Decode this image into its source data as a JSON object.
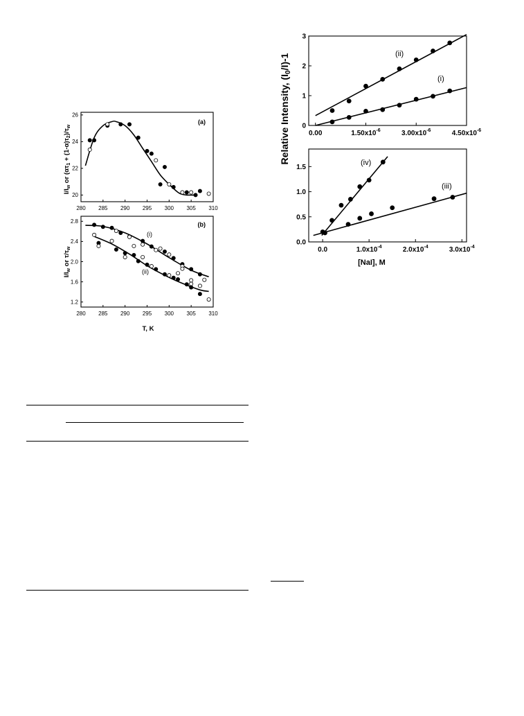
{
  "chart_data": [
    {
      "type": "scatter",
      "panel_label": "(a)",
      "xlim": [
        280,
        310
      ],
      "ylim": [
        19.5,
        26.2
      ],
      "xticks": [
        280,
        285,
        290,
        295,
        300,
        305,
        310
      ],
      "yticks": [
        20,
        22,
        24,
        26
      ],
      "xlabel": "",
      "ylabel": "I/I_w or (ατ1 + (1-α)τ2)/τw",
      "series": [
        {
          "marker": "filled",
          "x": [
            282,
            283,
            286,
            289,
            291,
            293,
            295,
            296,
            298,
            299,
            301,
            304,
            306,
            307
          ],
          "y": [
            24.1,
            24.1,
            25.2,
            25.3,
            25.3,
            24.3,
            23.3,
            23.1,
            20.8,
            22.1,
            20.6,
            20.2,
            20.0,
            20.3
          ]
        },
        {
          "marker": "open",
          "x": [
            282,
            286,
            297,
            300,
            303,
            305,
            309
          ],
          "y": [
            23.4,
            25.3,
            22.6,
            20.8,
            20.2,
            20.2,
            20.1
          ]
        }
      ],
      "fit": {
        "x": [
          281,
          283,
          285,
          287,
          288,
          290,
          292,
          294,
          296,
          298,
          300,
          302,
          303,
          304,
          305,
          306
        ],
        "y": [
          22.2,
          24.3,
          25.2,
          25.5,
          25.5,
          25.2,
          24.5,
          23.5,
          22.5,
          21.5,
          20.8,
          20.2,
          20.05,
          20.0,
          20.0,
          20.0
        ]
      }
    },
    {
      "type": "scatter",
      "panel_label": "(b)",
      "xlim": [
        280,
        310
      ],
      "ylim": [
        1.1,
        2.9
      ],
      "xticks": [
        280,
        285,
        290,
        295,
        300,
        305,
        310
      ],
      "yticks": [
        1.2,
        1.6,
        2.0,
        2.4,
        2.8
      ],
      "xlabel": "T, K",
      "ylabel": "I/I_w or τ/τw",
      "series": [
        {
          "name": "(i)",
          "marker": "filled",
          "x": [
            283,
            285,
            287,
            289,
            291,
            294,
            296,
            299,
            301,
            303,
            305,
            307
          ],
          "y": [
            2.73,
            2.69,
            2.67,
            2.57,
            2.5,
            2.41,
            2.3,
            2.2,
            2.07,
            1.95,
            1.85,
            1.75
          ]
        },
        {
          "name": "(i)",
          "marker": "open",
          "x": [
            288,
            291,
            294,
            297,
            300,
            303,
            305,
            308
          ],
          "y": [
            2.61,
            2.49,
            2.34,
            2.23,
            2.14,
            1.91,
            1.63,
            1.64
          ]
        },
        {
          "name": "(ii)",
          "marker": "filled",
          "x": [
            284,
            288,
            290,
            292,
            293,
            295,
            297,
            299,
            301,
            302,
            304,
            305,
            307
          ],
          "y": [
            2.37,
            2.24,
            2.17,
            2.13,
            2.01,
            1.94,
            1.85,
            1.75,
            1.68,
            1.65,
            1.55,
            1.49,
            1.36
          ]
        },
        {
          "name": "(ii)",
          "marker": "open",
          "x": [
            283,
            284,
            287,
            290,
            292,
            294,
            296,
            298,
            300,
            302,
            303,
            305,
            307,
            309
          ],
          "y": [
            2.53,
            2.31,
            2.41,
            2.09,
            2.31,
            2.09,
            1.91,
            2.26,
            1.73,
            1.77,
            1.86,
            1.56,
            1.52,
            1.25
          ]
        }
      ],
      "fits": [
        {
          "name": "(i)",
          "x": [
            281,
            285,
            290,
            295,
            300,
            305,
            309
          ],
          "y": [
            2.72,
            2.7,
            2.57,
            2.35,
            2.08,
            1.83,
            1.7
          ]
        },
        {
          "name": "(ii)",
          "x": [
            283,
            287,
            291,
            295,
            299,
            303,
            307,
            309
          ],
          "y": [
            2.5,
            2.35,
            2.15,
            1.92,
            1.73,
            1.57,
            1.44,
            1.41
          ]
        }
      ]
    },
    {
      "type": "scatter",
      "panel_label": "",
      "xlim": [
        -0.2,
        4.5
      ],
      "ylim": [
        0,
        3
      ],
      "xticks": [
        0,
        1.5,
        3.0,
        4.5
      ],
      "xticklabels": [
        "0.00",
        "1.50x10",
        "3.00x10",
        "4.50x10"
      ],
      "xtick_exponent": "-6",
      "yticks": [
        0,
        1,
        2,
        3
      ],
      "xlabel": "",
      "ylabel": "Relative Intensity, (I0/I)-1",
      "series": [
        {
          "name": "(ii)",
          "marker": "filled",
          "x": [
            0.5,
            1.0,
            1.5,
            2.0,
            2.5,
            3.0,
            3.5,
            4.0
          ],
          "y": [
            0.5,
            0.82,
            1.32,
            1.55,
            1.9,
            2.2,
            2.5,
            2.77
          ]
        },
        {
          "name": "(i)",
          "marker": "filled",
          "x": [
            0.5,
            1.0,
            1.5,
            2.0,
            2.5,
            3.0,
            3.5,
            4.0
          ],
          "y": [
            0.12,
            0.27,
            0.48,
            0.53,
            0.68,
            0.88,
            0.98,
            1.16
          ]
        }
      ],
      "fits": [
        {
          "name": "(ii)",
          "x": [
            0,
            4.5
          ],
          "y": [
            0.33,
            3.05
          ]
        },
        {
          "name": "(i)",
          "x": [
            0,
            4.5
          ],
          "y": [
            0.0,
            1.27
          ]
        }
      ]
    },
    {
      "type": "scatter",
      "panel_label": "",
      "xlim": [
        -0.3,
        3.1
      ],
      "ylim": [
        0,
        1.85
      ],
      "xticks": [
        0,
        1.0,
        2.0,
        3.0
      ],
      "xticklabels": [
        "0.0",
        "1.0x10",
        "2.0x10",
        "3.0x10"
      ],
      "xtick_exponent": "-4",
      "yticks": [
        0,
        0.5,
        1.0,
        1.5
      ],
      "ytick_labels": [
        "0.0",
        "0.5",
        "1.0",
        "1.5"
      ],
      "xlabel": "[NaI], M",
      "ylabel": "",
      "series": [
        {
          "name": "(iv)",
          "marker": "filled",
          "x": [
            0.0,
            0.2,
            0.4,
            0.6,
            0.8,
            1.0,
            1.3
          ],
          "y": [
            0.2,
            0.43,
            0.73,
            0.85,
            1.1,
            1.23,
            1.59
          ]
        },
        {
          "name": "(iii)",
          "marker": "filled",
          "x": [
            0.05,
            0.55,
            0.8,
            1.05,
            1.5,
            2.4,
            2.8
          ],
          "y": [
            0.18,
            0.35,
            0.47,
            0.56,
            0.68,
            0.86,
            0.89
          ]
        }
      ],
      "fits": [
        {
          "name": "(iv)",
          "x": [
            -0.02,
            1.4
          ],
          "y": [
            0.13,
            1.7
          ]
        },
        {
          "name": "(iii)",
          "x": [
            -0.2,
            3.1
          ],
          "y": [
            0.13,
            0.97
          ]
        }
      ]
    }
  ],
  "labels": {
    "a_ylabel_main": "I/I",
    "a_ylabel_sub": "w",
    "a_ylabel_rest": " or (ατ",
    "a_ylabel_sub1": "1",
    "a_ylabel_mid": " + (1-α)τ",
    "a_ylabel_sub2": "2",
    "a_ylabel_end": ")/τ",
    "a_ylabel_subw": "w",
    "b_ylabel_main": "I/I",
    "b_ylabel_sub": "w",
    "b_ylabel_rest": " or τ/τ",
    "b_ylabel_subw": "w",
    "b_xlabel": "T, K",
    "r_ylabel_a": "Relative Intensity, (I",
    "r_ylabel_sub": "0",
    "r_ylabel_b": "/I)-1",
    "r_xlabel": "[NaI], M",
    "series_i": "(i)",
    "series_ii": "(ii)",
    "series_iii": "(iii)",
    "series_iv": "(iv)",
    "panel_a": "(a)",
    "panel_b": "(b)"
  }
}
